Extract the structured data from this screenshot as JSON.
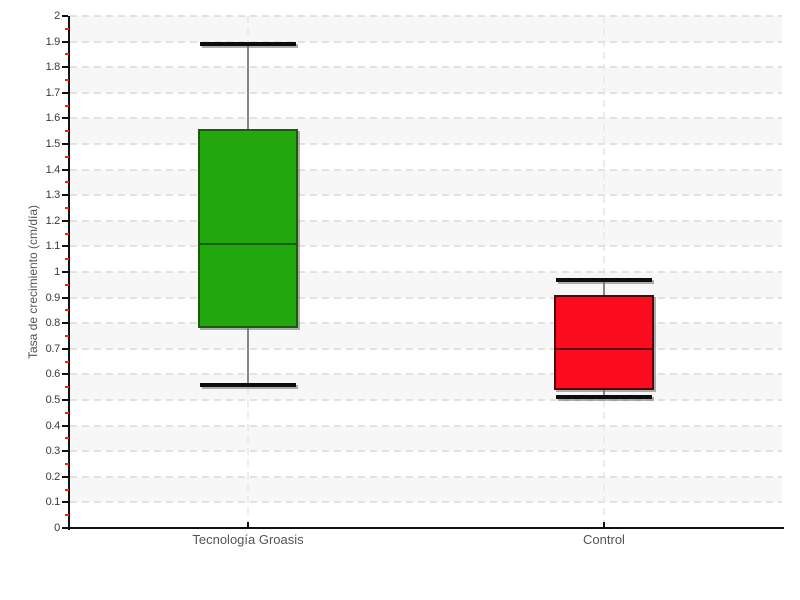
{
  "chart_data": {
    "type": "boxplot",
    "title": "",
    "xlabel": "",
    "ylabel": "Tasa de crecimiento (cm/día)",
    "ylim": [
      0,
      2
    ],
    "y_major_step": 0.1,
    "y_minor_step": 0.05,
    "y_tick_labels": [
      "0",
      "0.1",
      "0.2",
      "0.3",
      "0.4",
      "0.5",
      "0.6",
      "0.7",
      "0.8",
      "0.9",
      "1",
      "1.1",
      "1.2",
      "1.3",
      "1.4",
      "1.5",
      "1.6",
      "1.7",
      "1.8",
      "1.9",
      "2"
    ],
    "categories": [
      "Tecnología Groasis",
      "Control"
    ],
    "series": [
      {
        "name": "Tecnología Groasis",
        "box_color": "#23a70e",
        "border_color": "#1b5c06",
        "whisker_low": 0.56,
        "q1": 0.78,
        "median": 1.11,
        "q3": 1.56,
        "whisker_high": 1.89
      },
      {
        "name": "Control",
        "box_color": "#fb0d1f",
        "border_color": "#55060c",
        "whisker_low": 0.51,
        "q1": 0.54,
        "median": 0.7,
        "q3": 0.91,
        "whisker_high": 0.97
      }
    ],
    "legend": "none",
    "grid": "horizontal dashed lines each 0.1, alternating gray bands, dashed vertical line at each category center",
    "colors": {
      "axis": "#111111",
      "major_tick": "#111111",
      "minor_tick": "#ff1a00",
      "grid_line": "#e2e2e2",
      "band": "#f7f7f7",
      "tick_label": "#3a3a3a",
      "category_label": "#555555",
      "axis_title": "#555555",
      "whisker_stem": "#868686",
      "whisker_cap": "#0d0d0d"
    }
  }
}
